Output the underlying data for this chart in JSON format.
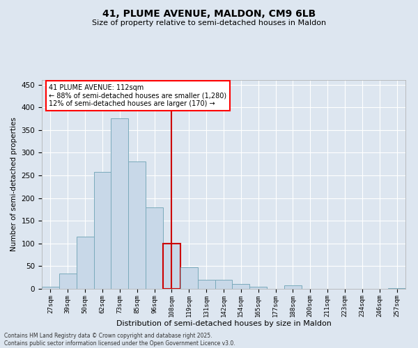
{
  "title1": "41, PLUME AVENUE, MALDON, CM9 6LB",
  "title2": "Size of property relative to semi-detached houses in Maldon",
  "xlabel": "Distribution of semi-detached houses by size in Maldon",
  "ylabel": "Number of semi-detached properties",
  "categories": [
    "27sqm",
    "39sqm",
    "50sqm",
    "62sqm",
    "73sqm",
    "85sqm",
    "96sqm",
    "108sqm",
    "119sqm",
    "131sqm",
    "142sqm",
    "154sqm",
    "165sqm",
    "177sqm",
    "188sqm",
    "200sqm",
    "211sqm",
    "223sqm",
    "234sqm",
    "246sqm",
    "257sqm"
  ],
  "values": [
    5,
    33,
    115,
    258,
    375,
    280,
    180,
    100,
    47,
    20,
    20,
    11,
    5,
    0,
    7,
    0,
    0,
    0,
    0,
    0,
    2
  ],
  "bar_color": "#c8d8e8",
  "bar_edge_color": "#7aaabb",
  "highlight_index": 7,
  "highlight_bar_edge_color": "#cc0000",
  "vline_color": "#cc0000",
  "annotation_text": "41 PLUME AVENUE: 112sqm\n← 88% of semi-detached houses are smaller (1,280)\n12% of semi-detached houses are larger (170) →",
  "ylim": [
    0,
    460
  ],
  "yticks": [
    0,
    50,
    100,
    150,
    200,
    250,
    300,
    350,
    400,
    450
  ],
  "background_color": "#dde6f0",
  "grid_color": "#ffffff",
  "footer_line1": "Contains HM Land Registry data © Crown copyright and database right 2025.",
  "footer_line2": "Contains public sector information licensed under the Open Government Licence v3.0."
}
